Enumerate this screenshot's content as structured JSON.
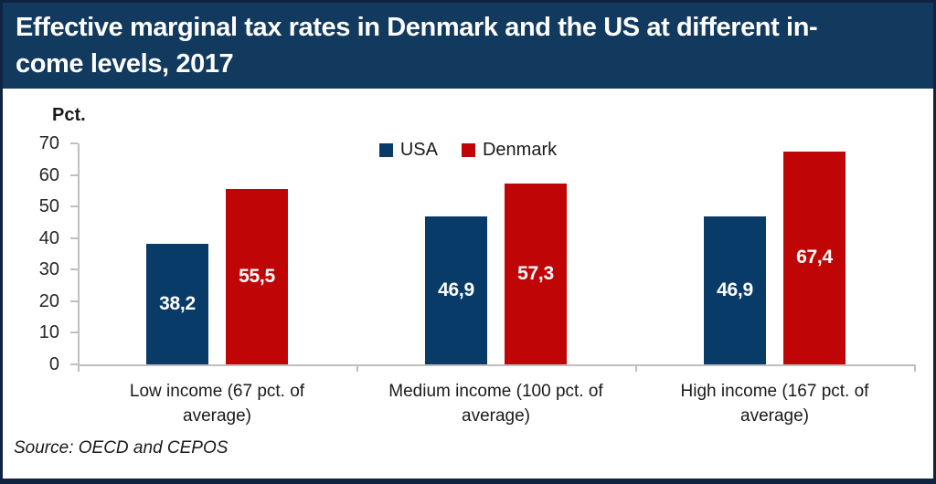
{
  "header": {
    "title_line1": "Effective marginal tax rates in Denmark and the US at different in-",
    "title_line2": "come levels, 2017"
  },
  "colors": {
    "header_bg": "#12395e",
    "frame_border": "#0e2440",
    "usa_bar": "#083b68",
    "denmark_bar": "#c00506",
    "axis_line": "#bfbfbf",
    "title_text": "#ffffff",
    "bar_value_text": "#ffffff",
    "body_text": "#1a1a1a"
  },
  "chart_data": {
    "type": "bar",
    "title": "Effective marginal tax rates in Denmark and the US at different income levels, 2017",
    "ylabel": "Pct.",
    "xlabel": "",
    "ylim": [
      0,
      70
    ],
    "yticks": [
      0,
      10,
      20,
      30,
      40,
      50,
      60,
      70
    ],
    "grid": false,
    "legend_position": "top-center",
    "categories": [
      "Low income (67 pct. of\naverage)",
      "Medium income (100 pct. of\naverage)",
      "High income (167 pct. of\naverage)"
    ],
    "series": [
      {
        "name": "USA",
        "color": "#083b68",
        "values": [
          38.2,
          46.9,
          46.9
        ],
        "value_labels": [
          "38,2",
          "46,9",
          "46,9"
        ]
      },
      {
        "name": "Denmark",
        "color": "#c00506",
        "values": [
          55.5,
          57.3,
          67.4
        ],
        "value_labels": [
          "55,5",
          "57,3",
          "67,4"
        ]
      }
    ]
  },
  "source": {
    "text": "Source: OECD and CEPOS"
  }
}
